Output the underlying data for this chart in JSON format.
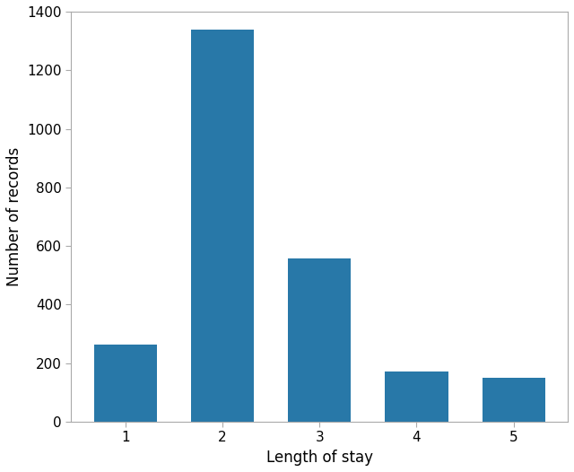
{
  "categories": [
    1,
    2,
    3,
    4,
    5
  ],
  "values": [
    265,
    1340,
    557,
    173,
    150
  ],
  "bar_color": "#2878a8",
  "xlabel": "Length of stay",
  "ylabel": "Number of records",
  "ylim": [
    0,
    1400
  ],
  "yticks": [
    0,
    200,
    400,
    600,
    800,
    1000,
    1200,
    1400
  ],
  "xticks": [
    1,
    2,
    3,
    4,
    5
  ],
  "background_color": "#ffffff",
  "bar_width": 0.65
}
